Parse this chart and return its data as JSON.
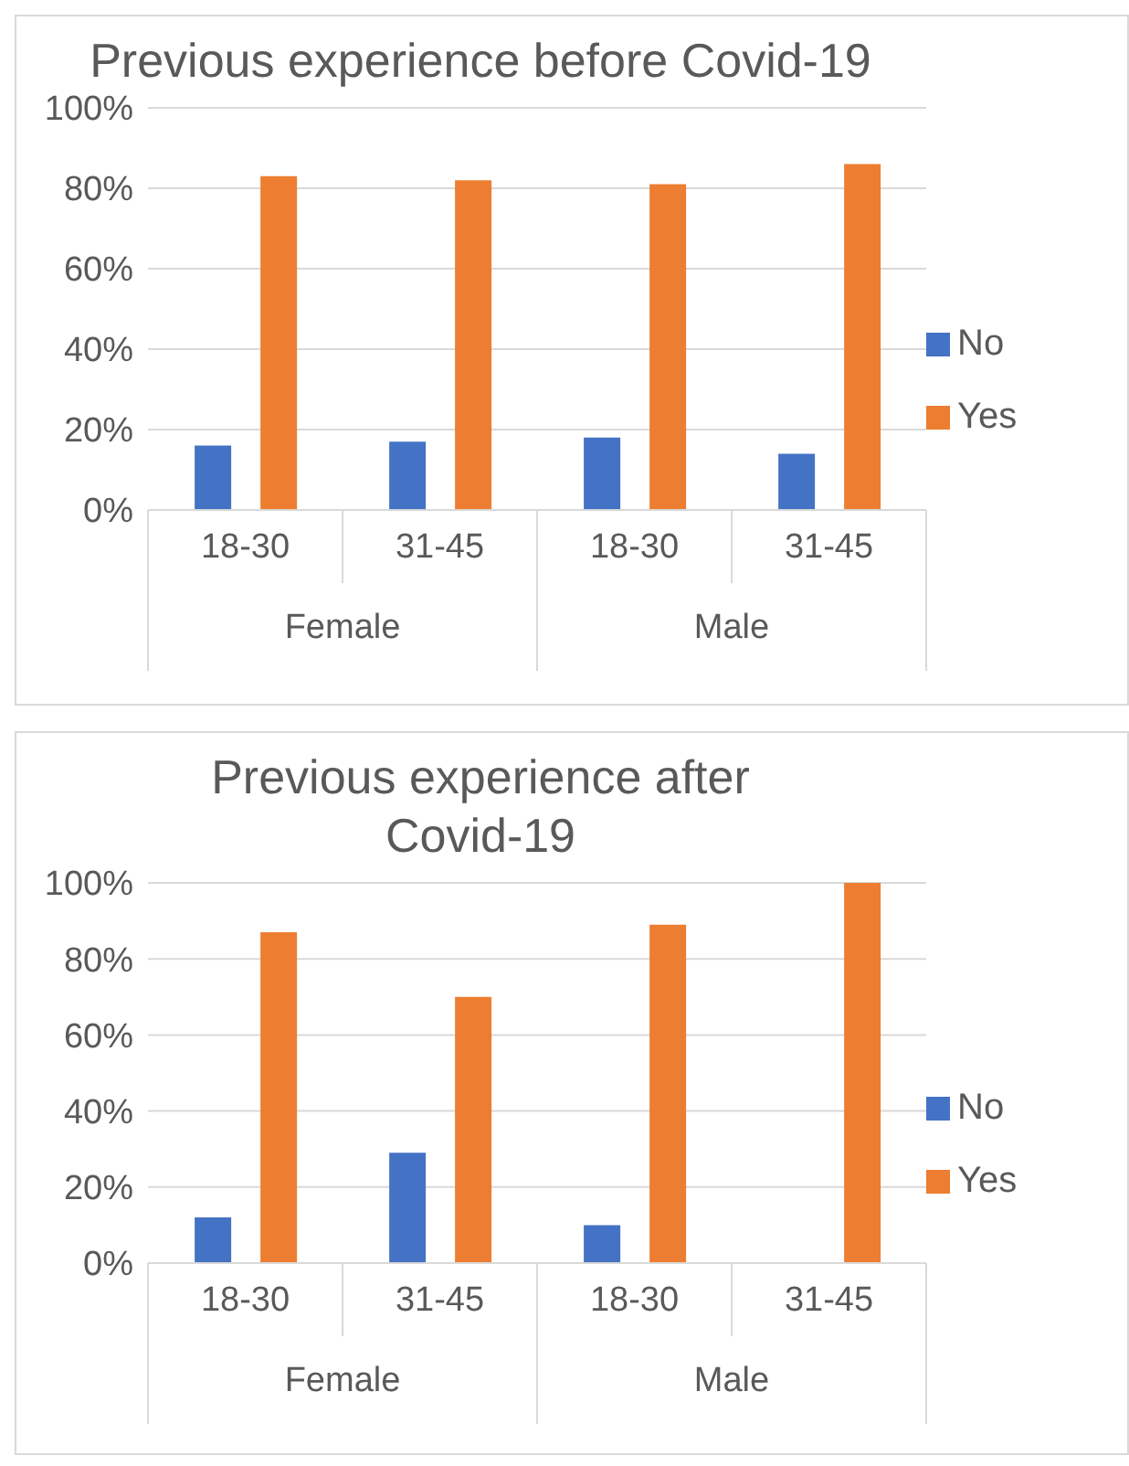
{
  "chart_data": [
    {
      "type": "bar",
      "title": "Previous experience before Covid-19",
      "categories": [
        "18-30",
        "31-45",
        "18-30",
        "31-45"
      ],
      "annotations": [
        "Female",
        "Male"
      ],
      "series": [
        {
          "name": "No",
          "color": "#4472c4",
          "values": [
            16,
            17,
            18,
            14
          ]
        },
        {
          "name": "Yes",
          "color": "#ed7d31",
          "values": [
            83,
            82,
            81,
            86
          ]
        }
      ],
      "ylim": [
        0,
        100
      ],
      "yticks": [
        {
          "value": 0,
          "label": "0%"
        },
        {
          "value": 20,
          "label": "20%"
        },
        {
          "value": 40,
          "label": "40%"
        },
        {
          "value": 60,
          "label": "60%"
        },
        {
          "value": 80,
          "label": "80%"
        },
        {
          "value": 100,
          "label": "100%"
        }
      ],
      "grid": "y",
      "legend": "right"
    },
    {
      "type": "bar",
      "title": "Previous experience after\nCovid-19",
      "categories": [
        "18-30",
        "31-45",
        "18-30",
        "31-45"
      ],
      "annotations": [
        "Female",
        "Male"
      ],
      "series": [
        {
          "name": "No",
          "color": "#4472c4",
          "values": [
            12,
            29,
            10,
            0
          ]
        },
        {
          "name": "Yes",
          "color": "#ed7d31",
          "values": [
            87,
            70,
            89,
            100
          ]
        }
      ],
      "ylim": [
        0,
        100
      ],
      "yticks": [
        {
          "value": 0,
          "label": "0%"
        },
        {
          "value": 20,
          "label": "20%"
        },
        {
          "value": 40,
          "label": "40%"
        },
        {
          "value": 60,
          "label": "60%"
        },
        {
          "value": 80,
          "label": "80%"
        },
        {
          "value": 100,
          "label": "100%"
        }
      ],
      "grid": "y",
      "legend": "right"
    }
  ]
}
